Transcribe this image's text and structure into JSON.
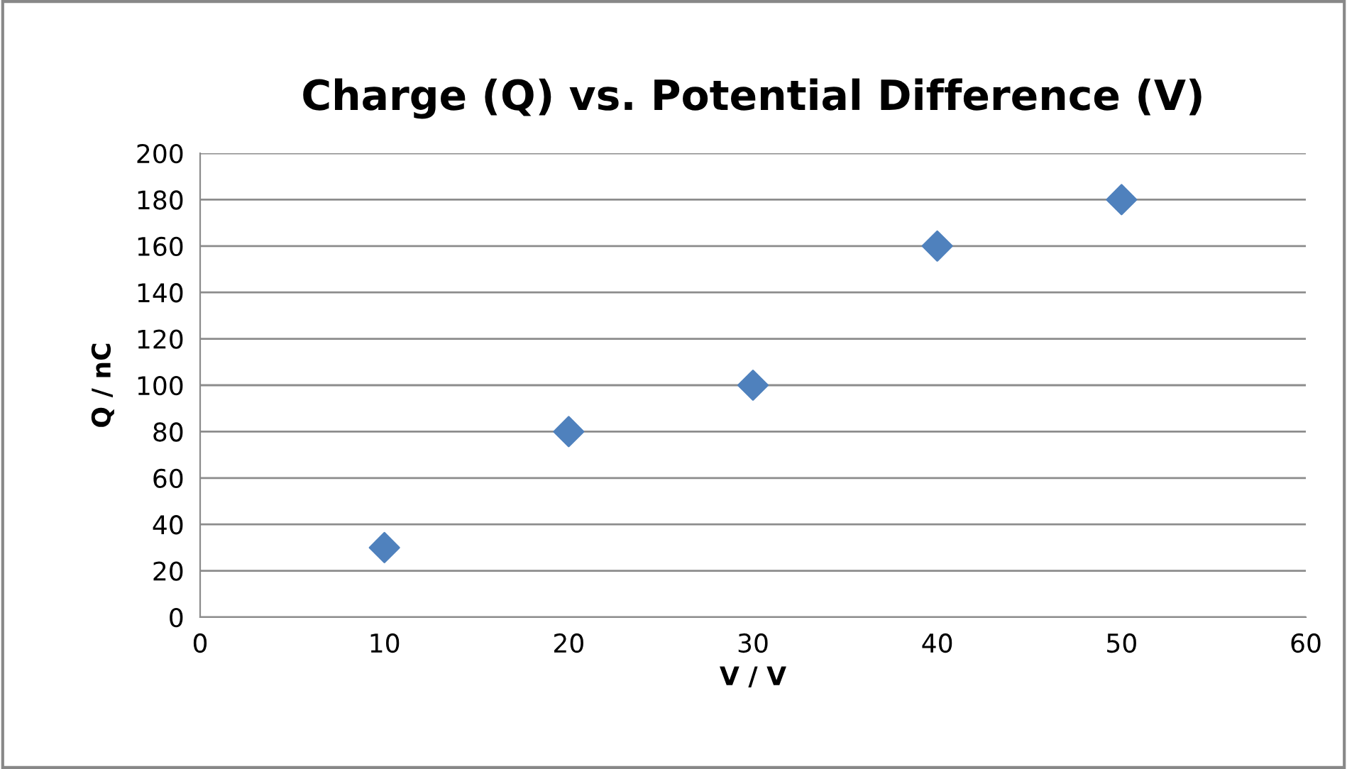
{
  "chart_data": {
    "type": "scatter",
    "title": "Charge (Q) vs. Potential Difference (V)",
    "xlabel": "V / V",
    "ylabel": "Q / nC",
    "series": [
      {
        "color": "#4f81bd",
        "x": [
          10,
          20,
          30,
          40,
          50
        ],
        "values": [
          30,
          80,
          100,
          160,
          180
        ]
      }
    ],
    "xlim": [
      0,
      60
    ],
    "xticks": [
      0,
      10,
      20,
      30,
      40,
      50,
      60
    ],
    "ylim": [
      0,
      200
    ],
    "yticks": [
      0,
      20,
      40,
      60,
      80,
      100,
      120,
      140,
      160,
      180,
      200
    ],
    "grid": "y",
    "marker": "diamond",
    "legend": false
  }
}
